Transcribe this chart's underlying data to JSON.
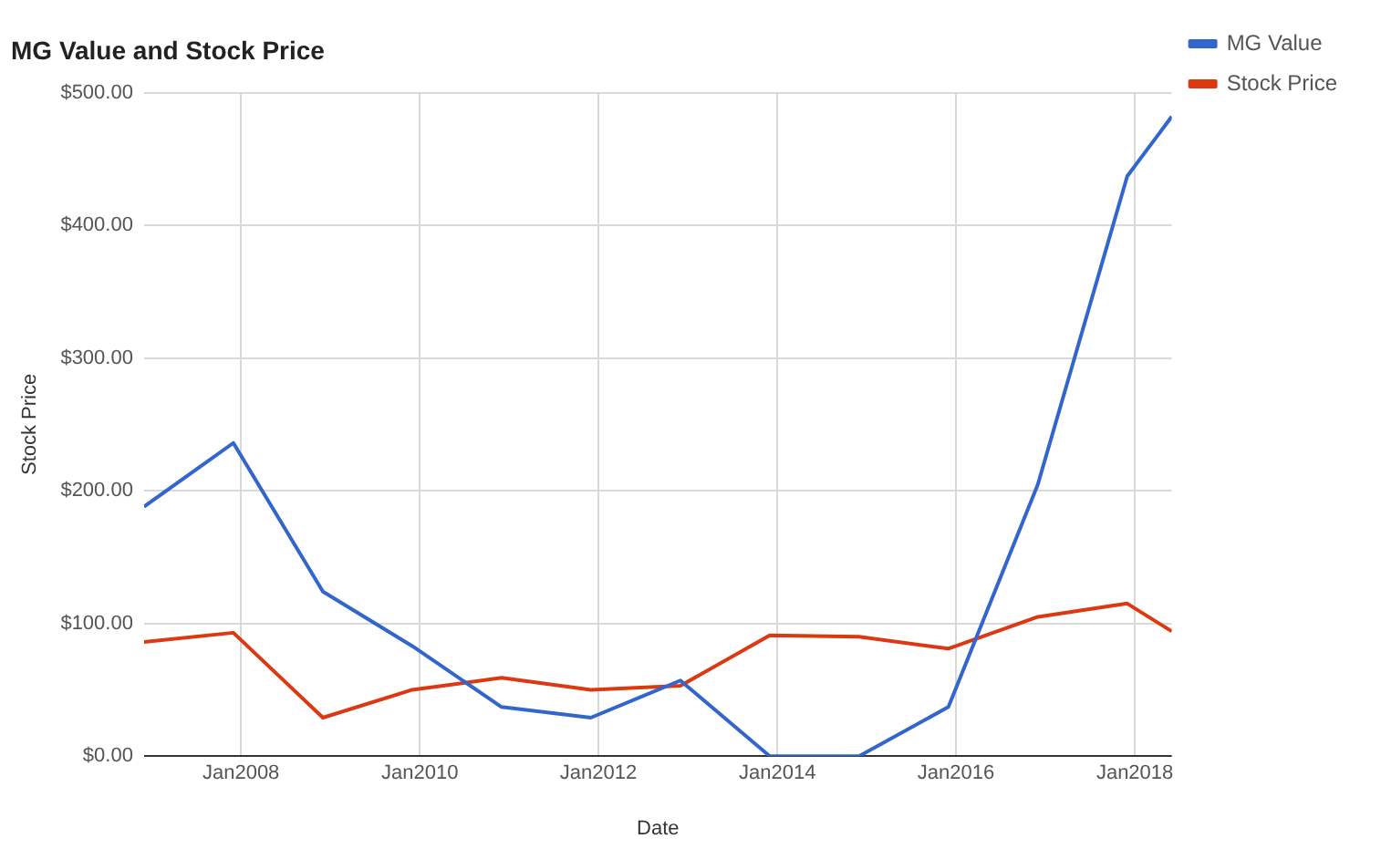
{
  "chart_data": {
    "type": "line",
    "title": "MG Value and Stock Price",
    "xlabel": "Date",
    "ylabel": "Stock Price",
    "x": [
      "2006-12",
      "2007-12",
      "2008-12",
      "2009-12",
      "2010-12",
      "2011-12",
      "2012-12",
      "2013-12",
      "2014-12",
      "2015-12",
      "2016-12",
      "2017-12",
      "2018-06"
    ],
    "series": [
      {
        "name": "MG Value",
        "color": "#3366cc",
        "values": [
          188,
          236,
          124,
          83,
          37,
          29,
          57,
          0,
          0,
          37,
          205,
          437,
          482
        ]
      },
      {
        "name": "Stock Price",
        "color": "#dc3912",
        "values": [
          86,
          93,
          29,
          50,
          59,
          50,
          53,
          91,
          90,
          81,
          105,
          115,
          94
        ]
      }
    ],
    "xlim": [
      "2006-12",
      "2018-06"
    ],
    "xticks": [
      {
        "value": "2008-01",
        "label": "Jan2008"
      },
      {
        "value": "2010-01",
        "label": "Jan2010"
      },
      {
        "value": "2012-01",
        "label": "Jan2012"
      },
      {
        "value": "2014-01",
        "label": "Jan2014"
      },
      {
        "value": "2016-01",
        "label": "Jan2016"
      },
      {
        "value": "2018-01",
        "label": "Jan2018"
      }
    ],
    "ylim": [
      0,
      500
    ],
    "yticks": [
      {
        "value": 0,
        "label": "$0.00"
      },
      {
        "value": 100,
        "label": "$100.00"
      },
      {
        "value": 200,
        "label": "$200.00"
      },
      {
        "value": 300,
        "label": "$300.00"
      },
      {
        "value": 400,
        "label": "$400.00"
      },
      {
        "value": 500,
        "label": "$500.00"
      }
    ],
    "grid": true,
    "legend": "top right",
    "marker": "none",
    "line_style": "solid"
  }
}
